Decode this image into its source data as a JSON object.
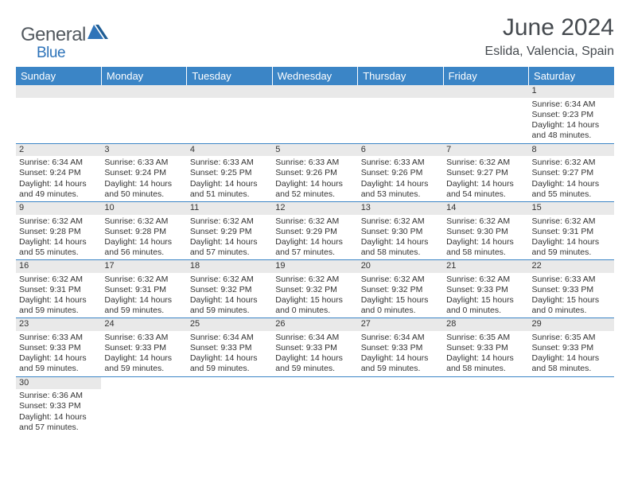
{
  "brand": {
    "part1": "General",
    "part2": "Blue"
  },
  "title": "June 2024",
  "location": "Eslida, Valencia, Spain",
  "colors": {
    "header_bg": "#3b85c6",
    "header_fg": "#ffffff",
    "row_border": "#3b85c6",
    "daynum_bg": "#e9e9e9",
    "text": "#333333",
    "title": "#454a4f",
    "logo_dark": "#52595f",
    "logo_blue": "#2d73b9"
  },
  "day_headers": [
    "Sunday",
    "Monday",
    "Tuesday",
    "Wednesday",
    "Thursday",
    "Friday",
    "Saturday"
  ],
  "weeks": [
    [
      null,
      null,
      null,
      null,
      null,
      null,
      {
        "n": "1",
        "sr": "Sunrise: 6:34 AM",
        "ss": "Sunset: 9:23 PM",
        "d1": "Daylight: 14 hours",
        "d2": "and 48 minutes."
      }
    ],
    [
      {
        "n": "2",
        "sr": "Sunrise: 6:34 AM",
        "ss": "Sunset: 9:24 PM",
        "d1": "Daylight: 14 hours",
        "d2": "and 49 minutes."
      },
      {
        "n": "3",
        "sr": "Sunrise: 6:33 AM",
        "ss": "Sunset: 9:24 PM",
        "d1": "Daylight: 14 hours",
        "d2": "and 50 minutes."
      },
      {
        "n": "4",
        "sr": "Sunrise: 6:33 AM",
        "ss": "Sunset: 9:25 PM",
        "d1": "Daylight: 14 hours",
        "d2": "and 51 minutes."
      },
      {
        "n": "5",
        "sr": "Sunrise: 6:33 AM",
        "ss": "Sunset: 9:26 PM",
        "d1": "Daylight: 14 hours",
        "d2": "and 52 minutes."
      },
      {
        "n": "6",
        "sr": "Sunrise: 6:33 AM",
        "ss": "Sunset: 9:26 PM",
        "d1": "Daylight: 14 hours",
        "d2": "and 53 minutes."
      },
      {
        "n": "7",
        "sr": "Sunrise: 6:32 AM",
        "ss": "Sunset: 9:27 PM",
        "d1": "Daylight: 14 hours",
        "d2": "and 54 minutes."
      },
      {
        "n": "8",
        "sr": "Sunrise: 6:32 AM",
        "ss": "Sunset: 9:27 PM",
        "d1": "Daylight: 14 hours",
        "d2": "and 55 minutes."
      }
    ],
    [
      {
        "n": "9",
        "sr": "Sunrise: 6:32 AM",
        "ss": "Sunset: 9:28 PM",
        "d1": "Daylight: 14 hours",
        "d2": "and 55 minutes."
      },
      {
        "n": "10",
        "sr": "Sunrise: 6:32 AM",
        "ss": "Sunset: 9:28 PM",
        "d1": "Daylight: 14 hours",
        "d2": "and 56 minutes."
      },
      {
        "n": "11",
        "sr": "Sunrise: 6:32 AM",
        "ss": "Sunset: 9:29 PM",
        "d1": "Daylight: 14 hours",
        "d2": "and 57 minutes."
      },
      {
        "n": "12",
        "sr": "Sunrise: 6:32 AM",
        "ss": "Sunset: 9:29 PM",
        "d1": "Daylight: 14 hours",
        "d2": "and 57 minutes."
      },
      {
        "n": "13",
        "sr": "Sunrise: 6:32 AM",
        "ss": "Sunset: 9:30 PM",
        "d1": "Daylight: 14 hours",
        "d2": "and 58 minutes."
      },
      {
        "n": "14",
        "sr": "Sunrise: 6:32 AM",
        "ss": "Sunset: 9:30 PM",
        "d1": "Daylight: 14 hours",
        "d2": "and 58 minutes."
      },
      {
        "n": "15",
        "sr": "Sunrise: 6:32 AM",
        "ss": "Sunset: 9:31 PM",
        "d1": "Daylight: 14 hours",
        "d2": "and 59 minutes."
      }
    ],
    [
      {
        "n": "16",
        "sr": "Sunrise: 6:32 AM",
        "ss": "Sunset: 9:31 PM",
        "d1": "Daylight: 14 hours",
        "d2": "and 59 minutes."
      },
      {
        "n": "17",
        "sr": "Sunrise: 6:32 AM",
        "ss": "Sunset: 9:31 PM",
        "d1": "Daylight: 14 hours",
        "d2": "and 59 minutes."
      },
      {
        "n": "18",
        "sr": "Sunrise: 6:32 AM",
        "ss": "Sunset: 9:32 PM",
        "d1": "Daylight: 14 hours",
        "d2": "and 59 minutes."
      },
      {
        "n": "19",
        "sr": "Sunrise: 6:32 AM",
        "ss": "Sunset: 9:32 PM",
        "d1": "Daylight: 15 hours",
        "d2": "and 0 minutes."
      },
      {
        "n": "20",
        "sr": "Sunrise: 6:32 AM",
        "ss": "Sunset: 9:32 PM",
        "d1": "Daylight: 15 hours",
        "d2": "and 0 minutes."
      },
      {
        "n": "21",
        "sr": "Sunrise: 6:32 AM",
        "ss": "Sunset: 9:33 PM",
        "d1": "Daylight: 15 hours",
        "d2": "and 0 minutes."
      },
      {
        "n": "22",
        "sr": "Sunrise: 6:33 AM",
        "ss": "Sunset: 9:33 PM",
        "d1": "Daylight: 15 hours",
        "d2": "and 0 minutes."
      }
    ],
    [
      {
        "n": "23",
        "sr": "Sunrise: 6:33 AM",
        "ss": "Sunset: 9:33 PM",
        "d1": "Daylight: 14 hours",
        "d2": "and 59 minutes."
      },
      {
        "n": "24",
        "sr": "Sunrise: 6:33 AM",
        "ss": "Sunset: 9:33 PM",
        "d1": "Daylight: 14 hours",
        "d2": "and 59 minutes."
      },
      {
        "n": "25",
        "sr": "Sunrise: 6:34 AM",
        "ss": "Sunset: 9:33 PM",
        "d1": "Daylight: 14 hours",
        "d2": "and 59 minutes."
      },
      {
        "n": "26",
        "sr": "Sunrise: 6:34 AM",
        "ss": "Sunset: 9:33 PM",
        "d1": "Daylight: 14 hours",
        "d2": "and 59 minutes."
      },
      {
        "n": "27",
        "sr": "Sunrise: 6:34 AM",
        "ss": "Sunset: 9:33 PM",
        "d1": "Daylight: 14 hours",
        "d2": "and 59 minutes."
      },
      {
        "n": "28",
        "sr": "Sunrise: 6:35 AM",
        "ss": "Sunset: 9:33 PM",
        "d1": "Daylight: 14 hours",
        "d2": "and 58 minutes."
      },
      {
        "n": "29",
        "sr": "Sunrise: 6:35 AM",
        "ss": "Sunset: 9:33 PM",
        "d1": "Daylight: 14 hours",
        "d2": "and 58 minutes."
      }
    ],
    [
      {
        "n": "30",
        "sr": "Sunrise: 6:36 AM",
        "ss": "Sunset: 9:33 PM",
        "d1": "Daylight: 14 hours",
        "d2": "and 57 minutes."
      },
      null,
      null,
      null,
      null,
      null,
      null
    ]
  ]
}
